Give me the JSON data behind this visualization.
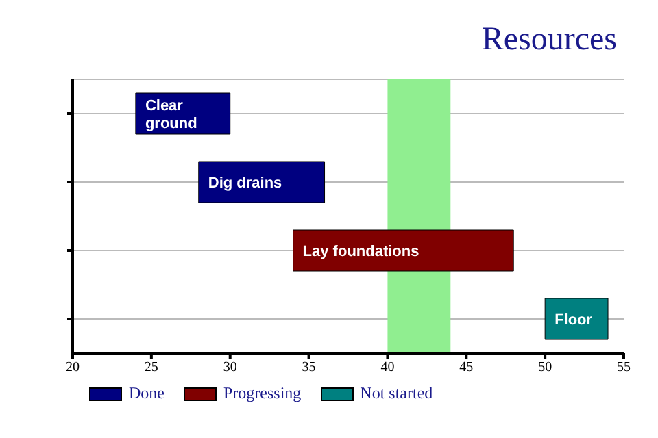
{
  "chart_data": {
    "type": "bar",
    "orientation": "horizontal",
    "title": "Resources",
    "categories": [
      null,
      null,
      null,
      null
    ],
    "series": [
      {
        "name": "Done",
        "color": "#000080",
        "values": [
          6,
          8,
          null,
          null
        ],
        "base": [
          24,
          28,
          null,
          null
        ],
        "value_labels": [
          "Clear ground",
          "Dig drains",
          null,
          null
        ]
      },
      {
        "name": "Progressing",
        "color": "#800000",
        "values": [
          null,
          null,
          14,
          null
        ],
        "base": [
          null,
          null,
          34,
          null
        ],
        "value_labels": [
          null,
          null,
          "Lay foundations",
          null
        ]
      },
      {
        "name": "Not started",
        "color": "#008080",
        "values": [
          null,
          null,
          null,
          4
        ],
        "base": [
          null,
          null,
          null,
          50
        ],
        "value_labels": [
          null,
          null,
          null,
          "Floor"
        ]
      }
    ],
    "xlim": [
      20,
      55
    ],
    "xticks": [
      20,
      25,
      30,
      35,
      40,
      45,
      50,
      55
    ],
    "bands": [
      {
        "axis": "x",
        "from": 40,
        "to": 44,
        "color": "#90ee90"
      }
    ],
    "grid": "y",
    "legend": "bottom left",
    "tick_labels": "x"
  }
}
